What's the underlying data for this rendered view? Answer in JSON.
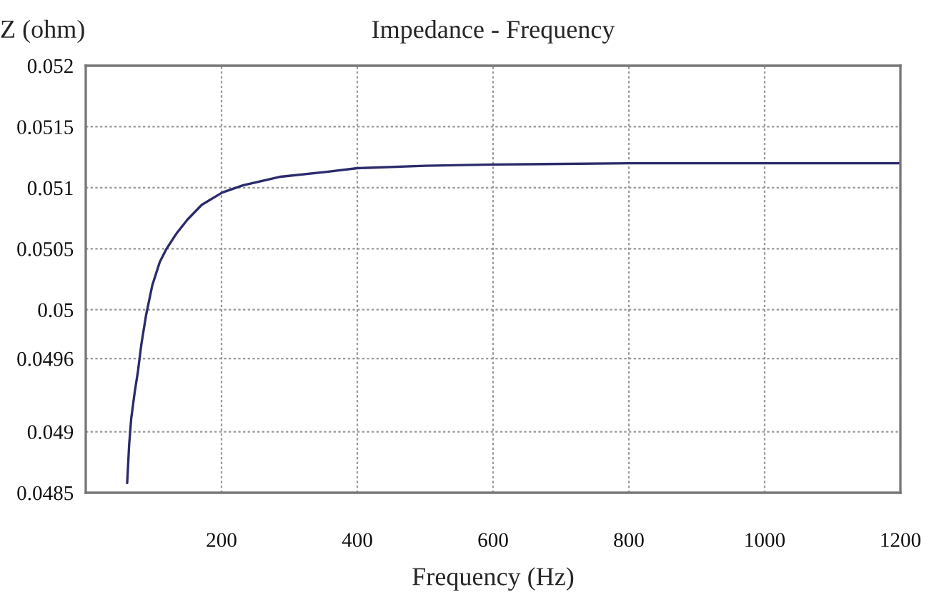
{
  "chart_data": {
    "type": "line",
    "title": "Impedance - Frequency",
    "xlabel": "Frequency (Hz)",
    "ylabel": "Z (ohm)",
    "x": [
      61,
      64,
      67,
      72,
      77,
      82,
      89,
      98,
      109,
      119,
      133,
      150,
      171,
      201,
      232,
      287,
      355,
      400,
      500,
      600,
      800,
      1000,
      1200
    ],
    "series": [
      {
        "color": "#2b2b6b",
        "values": [
          0.04858,
          0.0489,
          0.04911,
          0.04932,
          0.0495,
          0.04972,
          0.04996,
          0.0502,
          0.05039,
          0.0505,
          0.05062,
          0.05074,
          0.05086,
          0.05096,
          0.05102,
          0.05109,
          0.05113,
          0.05116,
          0.05118,
          0.05119,
          0.0512,
          0.0512,
          0.0512
        ]
      }
    ],
    "xlim": [
      0,
      1200
    ],
    "xticks": [
      200,
      400,
      600,
      800,
      1000,
      1200
    ],
    "ylim": [
      0.0485,
      0.052
    ],
    "yticks": [
      0.0485,
      0.049,
      0.0496,
      0.05,
      0.0505,
      0.051,
      0.0515,
      0.052
    ],
    "grid": true,
    "legend": false,
    "marker": "none",
    "line_style": "solid"
  }
}
